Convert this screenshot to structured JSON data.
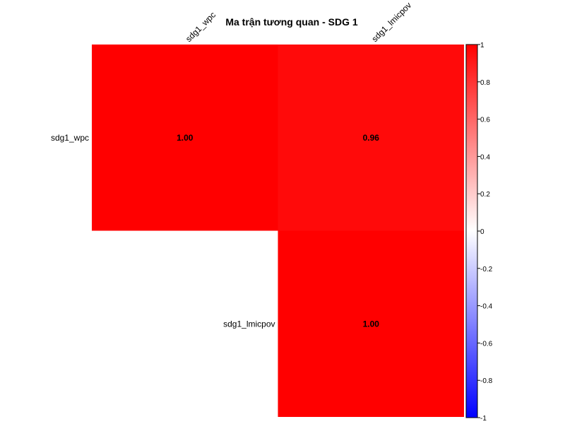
{
  "chart_data": {
    "type": "heatmap",
    "title": "Ma trận tương quan - SDG 1",
    "variables": [
      "sdg1_wpc",
      "sdg1_lmicpov"
    ],
    "matrix_layout": "upper-triangle",
    "cells": [
      {
        "row": "sdg1_wpc",
        "col": "sdg1_wpc",
        "value": 1.0,
        "label": "1.00"
      },
      {
        "row": "sdg1_wpc",
        "col": "sdg1_lmicpov",
        "value": 0.96,
        "label": "0.96"
      },
      {
        "row": "sdg1_lmicpov",
        "col": "sdg1_lmicpov",
        "value": 1.0,
        "label": "1.00"
      }
    ],
    "colorbar": {
      "range": [
        -1,
        1
      ],
      "ticks": [
        "-1",
        "-0.8",
        "-0.6",
        "-0.4",
        "-0.2",
        "0",
        "0.2",
        "0.4",
        "0.6",
        "0.8",
        "1"
      ],
      "low_color": "#0000FF",
      "mid_color": "#FFFFFF",
      "high_color": "#FF0000"
    },
    "grid": false
  }
}
